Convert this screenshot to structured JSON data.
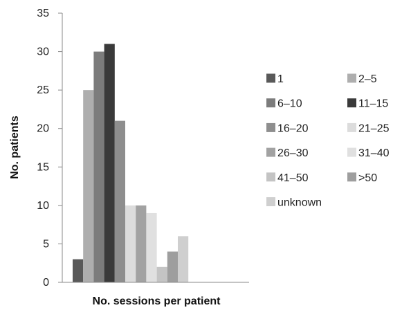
{
  "chart_data": {
    "type": "bar",
    "title": "",
    "xlabel": "No. sessions per patient",
    "ylabel": "No. patients",
    "ylim": [
      0,
      35
    ],
    "yticks": [
      0,
      5,
      10,
      15,
      20,
      25,
      30,
      35
    ],
    "grid": false,
    "legend_position": "right",
    "categories": [
      "1",
      "2–5",
      "6–10",
      "11–15",
      "16–20",
      "21–25",
      "26–30",
      "31–40",
      "41–50",
      ">50",
      "unknown"
    ],
    "values": [
      3,
      25,
      30,
      31,
      21,
      10,
      10,
      9,
      2,
      4,
      6
    ],
    "colors": [
      "#595959",
      "#aeaeae",
      "#7c7c7c",
      "#3a3a3a",
      "#8e8e8e",
      "#dcdcdc",
      "#a2a2a2",
      "#e0e0e0",
      "#c4c4c4",
      "#9e9e9e",
      "#cfcfcf"
    ]
  }
}
